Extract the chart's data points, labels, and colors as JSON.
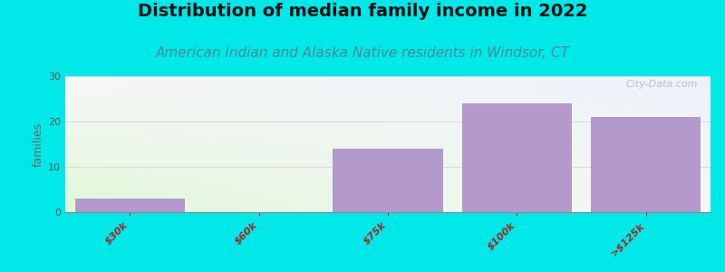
{
  "title": "Distribution of median family income in 2022",
  "subtitle": "American Indian and Alaska Native residents in Windsor, CT",
  "categories": [
    "$30k",
    "$60k",
    "$75k",
    "$100k",
    ">$125k"
  ],
  "values": [
    3,
    0,
    14,
    24,
    21
  ],
  "bar_color": "#b399cc",
  "bar_edge_color": "#c8b4d8",
  "background_color": "#00e8e8",
  "ylabel": "families",
  "ylim": [
    0,
    30
  ],
  "yticks": [
    0,
    10,
    20,
    30
  ],
  "grid_color": "#cccccc",
  "title_fontsize": 14,
  "subtitle_fontsize": 11,
  "subtitle_color": "#4a8a9a",
  "tick_label_color": "#aa2222",
  "ylabel_color": "#666666",
  "watermark_text": "City-Data.com",
  "bar_width": 0.85
}
